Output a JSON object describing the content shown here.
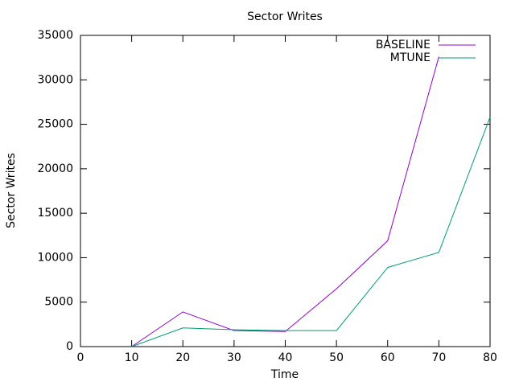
{
  "chart_data": {
    "type": "line",
    "title": "Sector Writes",
    "x_label": "Time",
    "y_label": "Sector Writes",
    "x": [
      10,
      20,
      30,
      40,
      50,
      60,
      70,
      80
    ],
    "series": [
      {
        "name": "BASELINE",
        "color": "#9400d3",
        "values": [
          0,
          3900,
          1800,
          1700,
          6500,
          11900,
          32600,
          null
        ]
      },
      {
        "name": "MTUNE",
        "color": "#009e73",
        "values": [
          0,
          2100,
          1900,
          1800,
          1800,
          8900,
          10600,
          25800
        ]
      }
    ],
    "xlim": [
      0,
      80
    ],
    "xticks": [
      0,
      10,
      20,
      30,
      40,
      50,
      60,
      70,
      80
    ],
    "ylim": [
      0,
      35000
    ],
    "yticks": [
      0,
      5000,
      10000,
      15000,
      20000,
      25000,
      30000,
      35000
    ],
    "grid": false,
    "legend": "top-right"
  }
}
